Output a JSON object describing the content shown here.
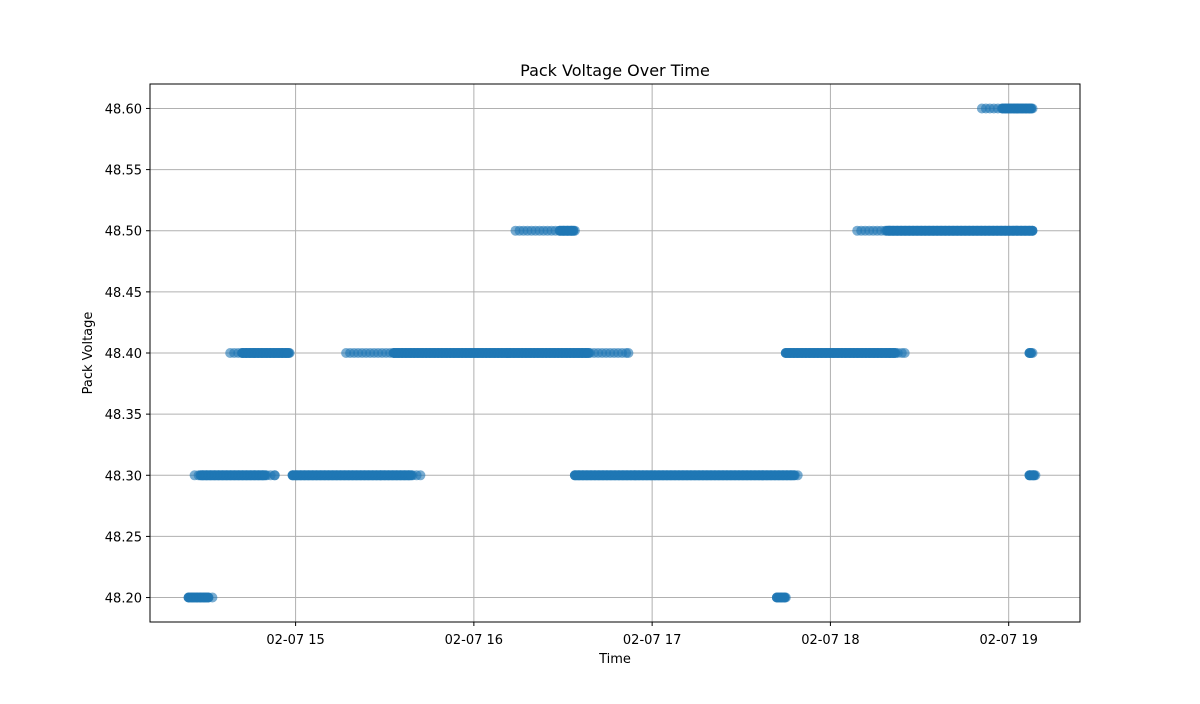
{
  "chart_data": {
    "type": "scatter",
    "title": "Pack Voltage Over Time",
    "xlabel": "Time",
    "ylabel": "Pack Voltage",
    "x_type": "time",
    "xlim": [
      "02-07 14:11",
      "02-07 19:24"
    ],
    "ylim": [
      48.18,
      48.62
    ],
    "x_ticks": [
      {
        "value": "02-07 15:00",
        "label": "02-07 15"
      },
      {
        "value": "02-07 16:00",
        "label": "02-07 16"
      },
      {
        "value": "02-07 17:00",
        "label": "02-07 17"
      },
      {
        "value": "02-07 18:00",
        "label": "02-07 18"
      },
      {
        "value": "02-07 19:00",
        "label": "02-07 19"
      }
    ],
    "y_ticks": [
      48.2,
      48.25,
      48.3,
      48.35,
      48.4,
      48.45,
      48.5,
      48.55,
      48.6
    ],
    "y_tick_labels": [
      "48.20",
      "48.25",
      "48.30",
      "48.35",
      "48.40",
      "48.45",
      "48.50",
      "48.55",
      "48.60"
    ],
    "grid": true,
    "marker_color": "#1f77b4",
    "marker_alpha": 0.6,
    "series": [
      {
        "segments": [
          {
            "y": 48.2,
            "start": "02-07 14:24",
            "end": "02-07 14:32",
            "dense_start": "02-07 14:24",
            "dense_end": "02-07 14:31"
          },
          {
            "y": 48.3,
            "start": "02-07 14:26",
            "end": "02-07 14:53",
            "dense_start": "02-07 14:28",
            "dense_end": "02-07 14:50"
          },
          {
            "y": 48.4,
            "start": "02-07 14:38",
            "end": "02-07 14:58",
            "dense_start": "02-07 14:42",
            "dense_end": "02-07 14:58"
          },
          {
            "y": 48.3,
            "start": "02-07 14:59",
            "end": "02-07 15:42",
            "dense_start": "02-07 14:59",
            "dense_end": "02-07 15:39"
          },
          {
            "y": 48.4,
            "start": "02-07 15:17",
            "end": "02-07 16:52",
            "dense_start": "02-07 15:33",
            "dense_end": "02-07 16:39"
          },
          {
            "y": 48.5,
            "start": "02-07 16:14",
            "end": "02-07 16:34",
            "dense_start": "02-07 16:29",
            "dense_end": "02-07 16:34"
          },
          {
            "y": 48.3,
            "start": "02-07 16:34",
            "end": "02-07 17:49",
            "dense_start": "02-07 16:34",
            "dense_end": "02-07 17:48"
          },
          {
            "y": 48.2,
            "start": "02-07 17:42",
            "end": "02-07 17:45",
            "dense_start": "02-07 17:42",
            "dense_end": "02-07 17:45"
          },
          {
            "y": 48.4,
            "start": "02-07 17:45",
            "end": "02-07 18:25",
            "dense_start": "02-07 17:45",
            "dense_end": "02-07 18:22"
          },
          {
            "y": 48.5,
            "start": "02-07 18:09",
            "end": "02-07 19:08",
            "dense_start": "02-07 18:19",
            "dense_end": "02-07 19:08"
          },
          {
            "y": 48.6,
            "start": "02-07 18:51",
            "end": "02-07 19:08",
            "dense_start": "02-07 18:58",
            "dense_end": "02-07 19:08"
          },
          {
            "y": 48.4,
            "start": "02-07 19:07",
            "end": "02-07 19:08",
            "dense_start": "02-07 19:07",
            "dense_end": "02-07 19:08"
          },
          {
            "y": 48.3,
            "start": "02-07 19:07",
            "end": "02-07 19:09",
            "dense_start": "02-07 19:07",
            "dense_end": "02-07 19:09"
          }
        ]
      }
    ]
  }
}
